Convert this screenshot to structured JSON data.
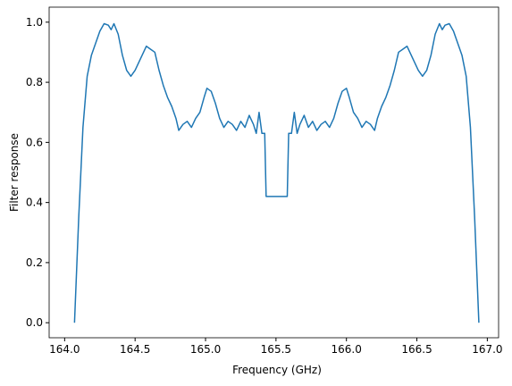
{
  "chart_data": {
    "type": "line",
    "xlabel": "Frequency (GHz)",
    "ylabel": "Filter response",
    "xlim": [
      163.89,
      167.08
    ],
    "ylim": [
      -0.05,
      1.05
    ],
    "xticks": [
      {
        "value": 164,
        "label": "164.0"
      },
      164.5,
      {
        "value": 165,
        "label": "165.0"
      },
      165.5,
      {
        "value": 166,
        "label": "166.0"
      },
      166.5,
      {
        "value": 167,
        "label": "167.0"
      }
    ],
    "yticks": [
      {
        "value": 0,
        "label": "0.0"
      },
      0.2,
      0.4,
      0.6,
      0.8,
      {
        "value": 1,
        "label": "1.0"
      }
    ],
    "x": [
      164.07,
      164.1,
      164.13,
      164.16,
      164.19,
      164.22,
      164.25,
      164.28,
      164.31,
      164.33,
      164.35,
      164.38,
      164.41,
      164.44,
      164.47,
      164.5,
      164.54,
      164.58,
      164.61,
      164.64,
      164.67,
      164.7,
      164.73,
      164.76,
      164.79,
      164.81,
      164.84,
      164.87,
      164.9,
      164.93,
      164.96,
      164.99,
      165.01,
      165.04,
      165.07,
      165.1,
      165.13,
      165.16,
      165.19,
      165.22,
      165.25,
      165.28,
      165.31,
      165.34,
      165.36,
      165.38,
      165.4,
      165.42,
      165.43,
      165.5,
      165.58,
      165.59,
      165.61,
      165.63,
      165.65,
      165.67,
      165.7,
      165.73,
      165.76,
      165.79,
      165.82,
      165.85,
      165.88,
      165.91,
      165.94,
      165.97,
      166.0,
      166.02,
      166.05,
      166.08,
      166.11,
      166.14,
      166.17,
      166.2,
      166.22,
      166.25,
      166.28,
      166.31,
      166.34,
      166.37,
      166.4,
      166.43,
      166.47,
      166.51,
      166.54,
      166.57,
      166.6,
      166.63,
      166.66,
      166.68,
      166.7,
      166.73,
      166.76,
      166.79,
      166.82,
      166.85,
      166.88,
      166.91,
      166.94
    ],
    "series": [
      {
        "color": "#1f77b4",
        "values": [
          0.0,
          0.35,
          0.65,
          0.82,
          0.89,
          0.93,
          0.97,
          0.995,
          0.99,
          0.975,
          0.995,
          0.96,
          0.89,
          0.84,
          0.82,
          0.84,
          0.88,
          0.92,
          0.91,
          0.9,
          0.84,
          0.79,
          0.75,
          0.72,
          0.68,
          0.64,
          0.66,
          0.67,
          0.65,
          0.68,
          0.7,
          0.75,
          0.78,
          0.77,
          0.73,
          0.68,
          0.65,
          0.67,
          0.66,
          0.64,
          0.67,
          0.65,
          0.69,
          0.66,
          0.63,
          0.7,
          0.63,
          0.63,
          0.42,
          0.42,
          0.42,
          0.63,
          0.63,
          0.7,
          0.63,
          0.66,
          0.69,
          0.65,
          0.67,
          0.64,
          0.66,
          0.67,
          0.65,
          0.68,
          0.73,
          0.77,
          0.78,
          0.75,
          0.7,
          0.68,
          0.65,
          0.67,
          0.66,
          0.64,
          0.68,
          0.72,
          0.75,
          0.79,
          0.84,
          0.9,
          0.91,
          0.92,
          0.88,
          0.84,
          0.82,
          0.84,
          0.89,
          0.96,
          0.995,
          0.975,
          0.99,
          0.995,
          0.97,
          0.93,
          0.89,
          0.82,
          0.65,
          0.35,
          0.0
        ]
      }
    ]
  }
}
